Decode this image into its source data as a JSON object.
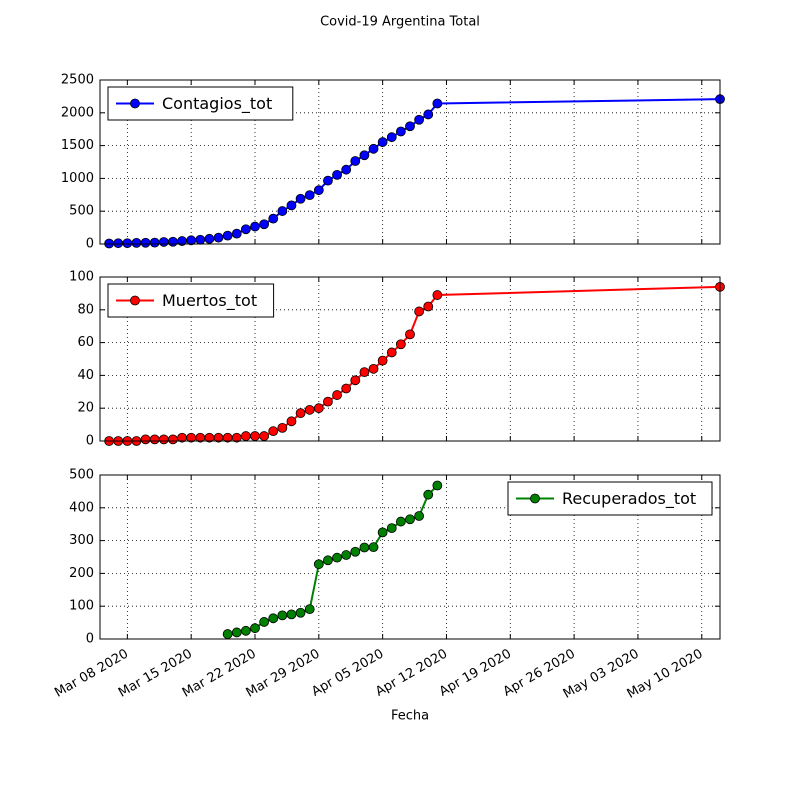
{
  "chart_data": [
    {
      "type": "line",
      "title": "Covid-19 Argentina Total",
      "x": [
        "2020-03-06",
        "2020-03-07",
        "2020-03-08",
        "2020-03-09",
        "2020-03-10",
        "2020-03-11",
        "2020-03-12",
        "2020-03-13",
        "2020-03-14",
        "2020-03-15",
        "2020-03-16",
        "2020-03-17",
        "2020-03-18",
        "2020-03-19",
        "2020-03-20",
        "2020-03-21",
        "2020-03-22",
        "2020-03-23",
        "2020-03-24",
        "2020-03-25",
        "2020-03-26",
        "2020-03-27",
        "2020-03-28",
        "2020-03-29",
        "2020-03-30",
        "2020-03-31",
        "2020-04-01",
        "2020-04-02",
        "2020-04-03",
        "2020-04-04",
        "2020-04-05",
        "2020-04-06",
        "2020-04-07",
        "2020-04-08",
        "2020-04-09",
        "2020-04-10",
        "2020-04-11",
        "2020-05-12"
      ],
      "series": [
        {
          "name": "Contagios_tot",
          "color": "#0000ff",
          "values": [
            8,
            12,
            12,
            17,
            19,
            21,
            31,
            34,
            45,
            56,
            65,
            79,
            97,
            128,
            158,
            225,
            266,
            301,
            387,
            502,
            589,
            690,
            745,
            820,
            966,
            1054,
            1133,
            1265,
            1353,
            1451,
            1554,
            1628,
            1715,
            1795,
            1894,
            1975,
            2142,
            2208
          ]
        }
      ],
      "xlim": [
        "2020-03-05",
        "2020-05-12"
      ],
      "xticks": [
        "2020-03-08",
        "2020-03-15",
        "2020-03-22",
        "2020-03-29",
        "2020-04-05",
        "2020-04-12",
        "2020-04-19",
        "2020-04-26",
        "2020-05-03",
        "2020-05-10"
      ],
      "ylim": [
        0,
        2500
      ],
      "yticks": [
        0,
        500,
        1000,
        1500,
        2000,
        2500
      ],
      "grid": true,
      "legend": "upper left"
    },
    {
      "type": "line",
      "x": [
        "2020-03-06",
        "2020-03-07",
        "2020-03-08",
        "2020-03-09",
        "2020-03-10",
        "2020-03-11",
        "2020-03-12",
        "2020-03-13",
        "2020-03-14",
        "2020-03-15",
        "2020-03-16",
        "2020-03-17",
        "2020-03-18",
        "2020-03-19",
        "2020-03-20",
        "2020-03-21",
        "2020-03-22",
        "2020-03-23",
        "2020-03-24",
        "2020-03-25",
        "2020-03-26",
        "2020-03-27",
        "2020-03-28",
        "2020-03-29",
        "2020-03-30",
        "2020-03-31",
        "2020-04-01",
        "2020-04-02",
        "2020-04-03",
        "2020-04-04",
        "2020-04-05",
        "2020-04-06",
        "2020-04-07",
        "2020-04-08",
        "2020-04-09",
        "2020-04-10",
        "2020-04-11",
        "2020-05-12"
      ],
      "series": [
        {
          "name": "Muertos_tot",
          "color": "#ff0000",
          "values": [
            0,
            0,
            0,
            0,
            1,
            1,
            1,
            1,
            2,
            2,
            2,
            2,
            2,
            2,
            2,
            3,
            3,
            3,
            6,
            8,
            12,
            17,
            19,
            20,
            24,
            28,
            32,
            37,
            42,
            44,
            49,
            54,
            59,
            65,
            79,
            82,
            89,
            94
          ]
        }
      ],
      "xlim": [
        "2020-03-05",
        "2020-05-12"
      ],
      "xticks": [
        "2020-03-08",
        "2020-03-15",
        "2020-03-22",
        "2020-03-29",
        "2020-04-05",
        "2020-04-12",
        "2020-04-19",
        "2020-04-26",
        "2020-05-03",
        "2020-05-10"
      ],
      "ylim": [
        0,
        100
      ],
      "yticks": [
        0,
        20,
        40,
        60,
        80,
        100
      ],
      "grid": true,
      "legend": "upper left"
    },
    {
      "type": "line",
      "x_label": "Fecha",
      "x": [
        "2020-03-06",
        "2020-03-07",
        "2020-03-08",
        "2020-03-09",
        "2020-03-10",
        "2020-03-11",
        "2020-03-12",
        "2020-03-13",
        "2020-03-14",
        "2020-03-15",
        "2020-03-16",
        "2020-03-17",
        "2020-03-18",
        "2020-03-19",
        "2020-03-20",
        "2020-03-21",
        "2020-03-22",
        "2020-03-23",
        "2020-03-24",
        "2020-03-25",
        "2020-03-26",
        "2020-03-27",
        "2020-03-28",
        "2020-03-29",
        "2020-03-30",
        "2020-03-31",
        "2020-04-01",
        "2020-04-02",
        "2020-04-03",
        "2020-04-04",
        "2020-04-05",
        "2020-04-06",
        "2020-04-07",
        "2020-04-08",
        "2020-04-09",
        "2020-04-10",
        "2020-04-11",
        "2020-05-12"
      ],
      "series": [
        {
          "name": "Recuperados_tot",
          "color": "#008000",
          "values": [
            null,
            null,
            null,
            null,
            null,
            null,
            null,
            null,
            null,
            null,
            null,
            null,
            null,
            15,
            20,
            25,
            33,
            52,
            63,
            72,
            75,
            80,
            91,
            228,
            240,
            248,
            256,
            266,
            279,
            280,
            325,
            338,
            358,
            365,
            375,
            440,
            468,
            null
          ]
        }
      ],
      "xlim": [
        "2020-03-05",
        "2020-05-12"
      ],
      "xticks": [
        {
          "value": "2020-03-08",
          "label": "Mar 08 2020"
        },
        {
          "value": "2020-03-15",
          "label": "Mar 15 2020"
        },
        {
          "value": "2020-03-22",
          "label": "Mar 22 2020"
        },
        {
          "value": "2020-03-29",
          "label": "Mar 29 2020"
        },
        {
          "value": "2020-04-05",
          "label": "Apr 05 2020"
        },
        {
          "value": "2020-04-12",
          "label": "Apr 12 2020"
        },
        {
          "value": "2020-04-19",
          "label": "Apr 19 2020"
        },
        {
          "value": "2020-04-26",
          "label": "Apr 26 2020"
        },
        {
          "value": "2020-05-03",
          "label": "May 03 2020"
        },
        {
          "value": "2020-05-10",
          "label": "May 10 2020"
        }
      ],
      "ylim": [
        0,
        500
      ],
      "yticks": [
        0,
        100,
        200,
        300,
        400,
        500
      ],
      "grid": true,
      "legend": "upper right"
    }
  ]
}
